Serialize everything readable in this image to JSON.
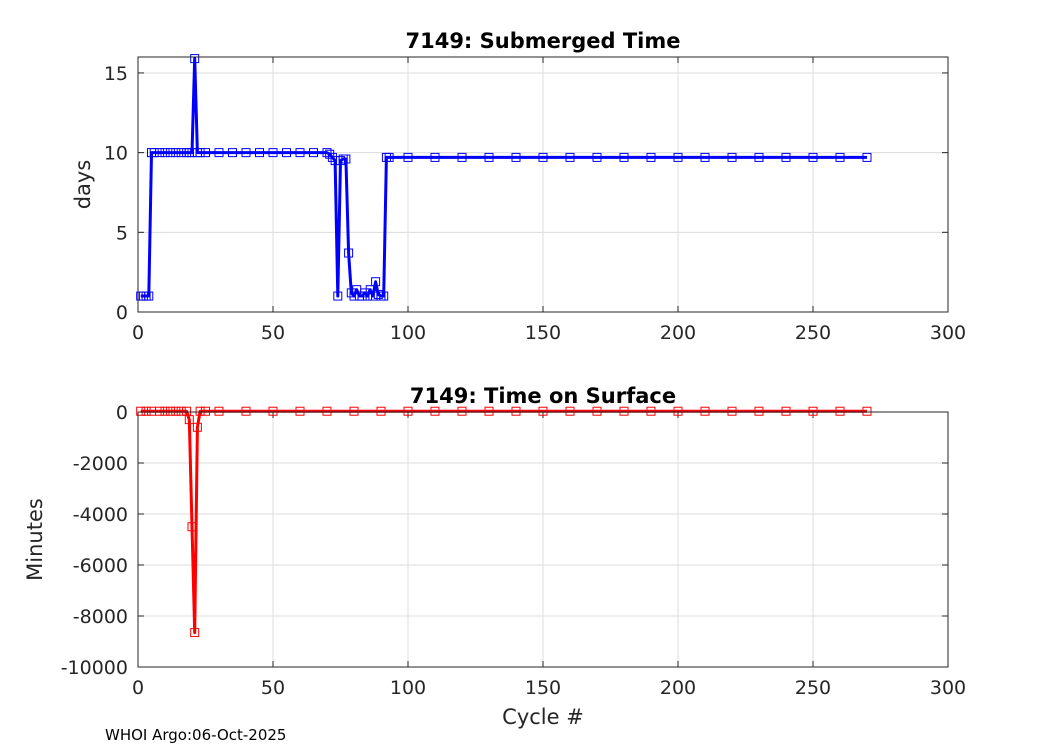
{
  "footer": "WHOI Argo:06-Oct-2025",
  "chart_data": [
    {
      "type": "line",
      "title": "7149: Submerged Time",
      "xlabel": "",
      "ylabel": "days",
      "xlim": [
        0,
        300
      ],
      "ylim": [
        0,
        16
      ],
      "xticks": [
        "0",
        "50",
        "100",
        "150",
        "200",
        "250",
        "300"
      ],
      "yticks": [
        "0",
        "5",
        "10",
        "15"
      ],
      "grid": true,
      "color": "#0000ff",
      "marker": "square",
      "series": [
        {
          "x": [
            1,
            2,
            3,
            4,
            5,
            6,
            8,
            10,
            12,
            14,
            16,
            18,
            19,
            20,
            21,
            22,
            23,
            25,
            30,
            35,
            40,
            45,
            50,
            55,
            60,
            65,
            70,
            71,
            72,
            73,
            74,
            75,
            76,
            77,
            78,
            79,
            80,
            81,
            82,
            83,
            84,
            85,
            86,
            87,
            88,
            89,
            90,
            91,
            92,
            93,
            100,
            110,
            120,
            130,
            140,
            150,
            160,
            170,
            180,
            190,
            200,
            210,
            220,
            230,
            240,
            250,
            260,
            270
          ],
          "y": [
            1.0,
            1.0,
            1.0,
            1.0,
            10.0,
            10.0,
            10.0,
            10.0,
            10.0,
            10.0,
            10.0,
            10.0,
            10.0,
            10.0,
            15.9,
            10.0,
            10.0,
            10.0,
            10.0,
            10.0,
            10.0,
            10.0,
            10.0,
            10.0,
            10.0,
            10.0,
            10.0,
            9.9,
            9.7,
            9.5,
            1.0,
            9.5,
            9.6,
            9.6,
            3.7,
            1.2,
            1.0,
            1.4,
            1.0,
            1.0,
            1.2,
            1.0,
            1.4,
            1.0,
            1.9,
            1.1,
            1.0,
            1.0,
            9.7,
            9.7,
            9.7,
            9.7,
            9.7,
            9.7,
            9.7,
            9.7,
            9.7,
            9.7,
            9.7,
            9.7,
            9.7,
            9.7,
            9.7,
            9.7,
            9.7,
            9.7,
            9.7,
            9.7
          ]
        }
      ]
    },
    {
      "type": "line",
      "title": "7149: Time on Surface",
      "xlabel": "Cycle #",
      "ylabel": "Minutes",
      "xlim": [
        0,
        300
      ],
      "ylim": [
        -10000,
        0
      ],
      "xticks": [
        "0",
        "50",
        "100",
        "150",
        "200",
        "250",
        "300"
      ],
      "yticks": [
        "0",
        "-2000",
        "-4000",
        "-6000",
        "-8000",
        "-10000"
      ],
      "grid": true,
      "color": "#ff0000",
      "marker": "square",
      "series": [
        {
          "x": [
            1,
            3,
            5,
            8,
            10,
            12,
            14,
            16,
            18,
            19,
            20,
            21,
            22,
            23,
            25,
            30,
            40,
            50,
            60,
            70,
            80,
            90,
            100,
            110,
            120,
            130,
            140,
            150,
            160,
            170,
            180,
            190,
            200,
            210,
            220,
            230,
            240,
            250,
            260,
            270
          ],
          "y": [
            30,
            30,
            30,
            30,
            30,
            30,
            30,
            30,
            30,
            -300,
            -4500,
            -8650,
            -600,
            30,
            30,
            30,
            30,
            30,
            30,
            30,
            30,
            30,
            30,
            30,
            30,
            30,
            30,
            30,
            30,
            30,
            30,
            30,
            30,
            30,
            30,
            30,
            30,
            30,
            30,
            30
          ]
        }
      ]
    }
  ]
}
